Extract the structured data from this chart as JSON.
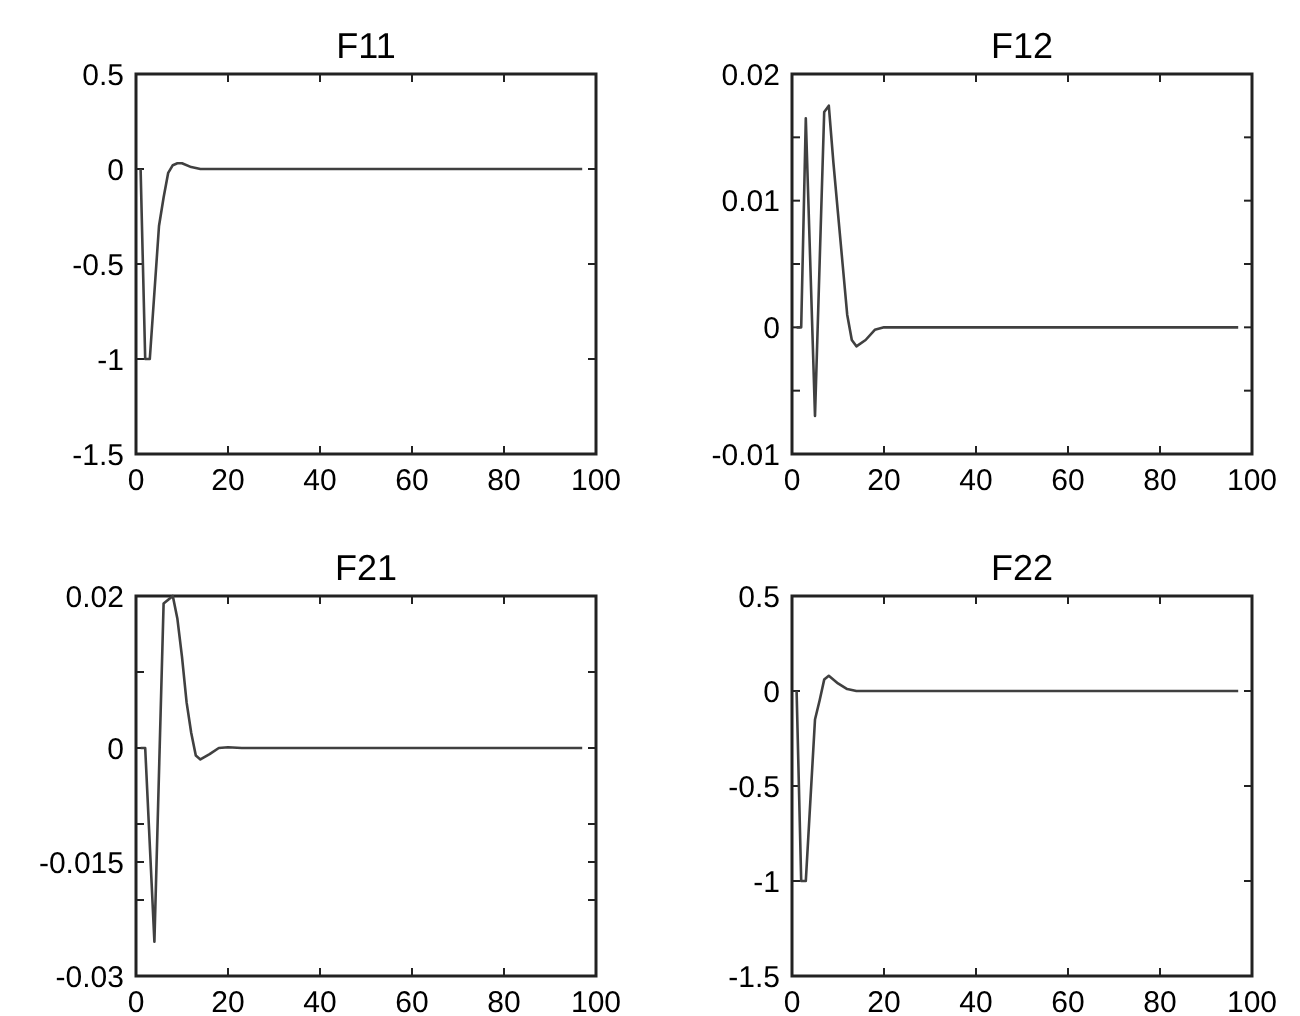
{
  "chart_data": [
    {
      "type": "line",
      "title": "F11",
      "xlim": [
        0,
        100
      ],
      "xticks": [
        0,
        20,
        40,
        60,
        80,
        100
      ],
      "ylim": [
        -1.5,
        0.5
      ],
      "yticks": [
        -1.5,
        -1,
        -0.5,
        0,
        0.5
      ],
      "series": [
        {
          "color": "#404040",
          "x": [
            1,
            2,
            3,
            5,
            6,
            7,
            8,
            9,
            10,
            12,
            14,
            97
          ],
          "values": [
            0,
            -1,
            -1,
            -0.3,
            -0.15,
            -0.02,
            0.02,
            0.03,
            0.03,
            0.01,
            0,
            0
          ]
        }
      ]
    },
    {
      "type": "line",
      "title": "F12",
      "xlim": [
        0,
        100
      ],
      "xticks": [
        0,
        20,
        40,
        60,
        80,
        100
      ],
      "ylim": [
        -0.01,
        0.02
      ],
      "yticks": [
        -0.01,
        {
          "value": -0.005,
          "label": null
        },
        0,
        {
          "value": 0.005,
          "label": null
        },
        0.01,
        {
          "value": 0.015,
          "label": null
        },
        0.02
      ],
      "series": [
        {
          "color": "#404040",
          "x": [
            1,
            2,
            3,
            5,
            7,
            8,
            9,
            10,
            11,
            12,
            13,
            14,
            16,
            18,
            20,
            97
          ],
          "values": [
            0,
            0,
            0.0165,
            -0.007,
            0.017,
            0.0175,
            0.013,
            0.009,
            0.005,
            0.001,
            -0.001,
            -0.0015,
            -0.001,
            -0.0002,
            0,
            0
          ]
        }
      ]
    },
    {
      "type": "line",
      "title": "F21",
      "xlim": [
        0,
        100
      ],
      "xticks": [
        0,
        20,
        40,
        60,
        80,
        100
      ],
      "ylim": [
        -0.03,
        0.02
      ],
      "yticks": [
        -0.03,
        {
          "value": -0.02,
          "label": null
        },
        -0.015,
        {
          "value": -0.01,
          "label": null
        },
        0,
        {
          "value": 0.01,
          "label": null
        },
        0.02
      ],
      "series": [
        {
          "color": "#404040",
          "x": [
            1,
            2,
            4,
            6,
            7,
            8,
            9,
            10,
            11,
            12,
            13,
            14,
            16,
            18,
            20,
            23,
            97
          ],
          "values": [
            0,
            0,
            -0.0255,
            0.019,
            0.0195,
            0.02,
            0.017,
            0.012,
            0.006,
            0.002,
            -0.001,
            -0.0015,
            -0.0008,
            0,
            0.0001,
            0,
            0
          ]
        }
      ]
    },
    {
      "type": "line",
      "title": "F22",
      "xlim": [
        0,
        100
      ],
      "xticks": [
        0,
        20,
        40,
        60,
        80,
        100
      ],
      "ylim": [
        -1.5,
        0.5
      ],
      "yticks": [
        -1.5,
        -1,
        -0.5,
        0,
        0.5
      ],
      "series": [
        {
          "color": "#404040",
          "x": [
            1,
            2,
            3,
            5,
            6,
            7,
            8,
            10,
            12,
            14,
            97
          ],
          "values": [
            0,
            -1,
            -1,
            -0.15,
            -0.05,
            0.06,
            0.08,
            0.04,
            0.01,
            0,
            0
          ]
        }
      ]
    }
  ]
}
